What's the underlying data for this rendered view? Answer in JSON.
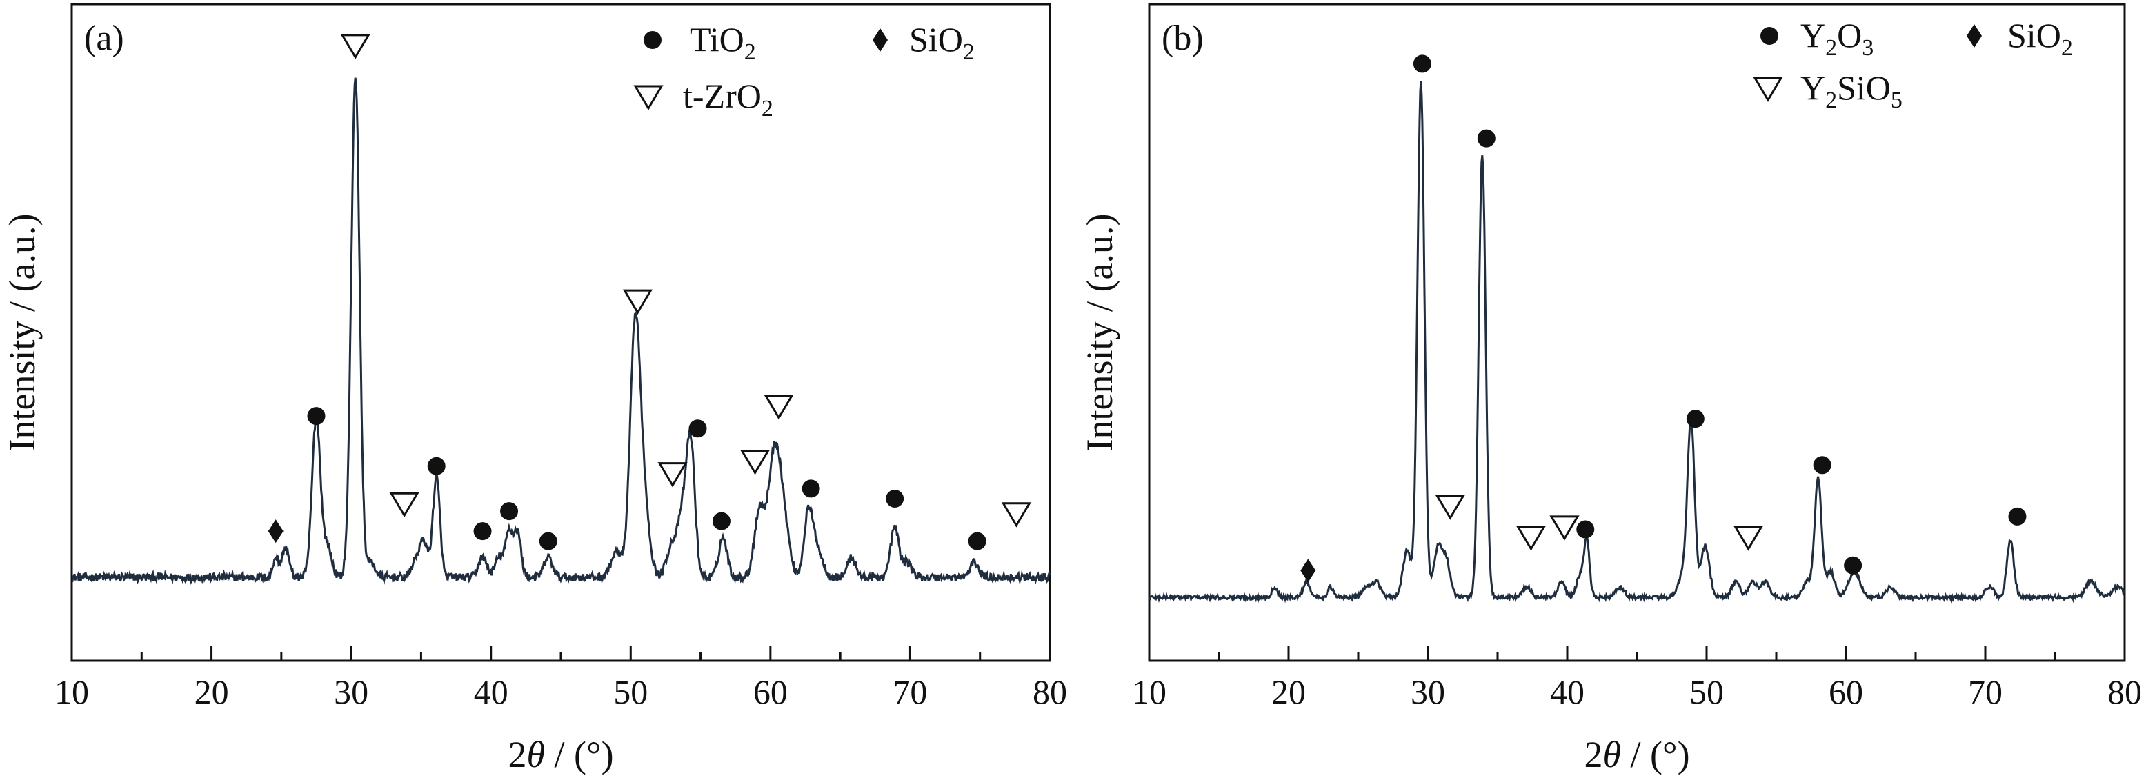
{
  "chart_data": [
    {
      "panel_label": "(a)",
      "type": "line",
      "xlabel_prefix": "2",
      "xlabel_theta": "θ",
      "xlabel_suffix": " / (°)",
      "ylabel": "Intensity / (a.u.)",
      "xlim": [
        10,
        80
      ],
      "xticks": [
        "10",
        "20",
        "30",
        "40",
        "50",
        "60",
        "70",
        "80"
      ],
      "ylim": [
        0,
        110
      ],
      "baseline": 1.8,
      "noise": 0.8,
      "line_color": "#1f2d3f",
      "peaks": [
        {
          "x": 24.6,
          "h": 4,
          "w": 0.2
        },
        {
          "x": 25.3,
          "h": 6,
          "w": 0.25
        },
        {
          "x": 27.5,
          "h": 32,
          "w": 0.3
        },
        {
          "x": 28.3,
          "h": 6,
          "w": 0.3
        },
        {
          "x": 30.3,
          "h": 100,
          "w": 0.3
        },
        {
          "x": 31.4,
          "h": 3,
          "w": 0.3
        },
        {
          "x": 34.6,
          "h": 3,
          "w": 0.3
        },
        {
          "x": 35.2,
          "h": 7,
          "w": 0.3
        },
        {
          "x": 36.1,
          "h": 20,
          "w": 0.25
        },
        {
          "x": 39.4,
          "h": 4,
          "w": 0.3
        },
        {
          "x": 40.6,
          "h": 4,
          "w": 0.3
        },
        {
          "x": 41.3,
          "h": 9,
          "w": 0.25
        },
        {
          "x": 41.9,
          "h": 9,
          "w": 0.25
        },
        {
          "x": 44.1,
          "h": 4,
          "w": 0.3
        },
        {
          "x": 49.0,
          "h": 5,
          "w": 0.4
        },
        {
          "x": 50.3,
          "h": 47,
          "w": 0.35
        },
        {
          "x": 50.9,
          "h": 16,
          "w": 0.4
        },
        {
          "x": 52.9,
          "h": 6,
          "w": 0.35
        },
        {
          "x": 53.7,
          "h": 12,
          "w": 0.35
        },
        {
          "x": 54.3,
          "h": 26,
          "w": 0.3
        },
        {
          "x": 56.6,
          "h": 8,
          "w": 0.3
        },
        {
          "x": 59.2,
          "h": 13,
          "w": 0.35
        },
        {
          "x": 60.3,
          "h": 25,
          "w": 0.45
        },
        {
          "x": 61.0,
          "h": 8,
          "w": 0.4
        },
        {
          "x": 62.7,
          "h": 12,
          "w": 0.3
        },
        {
          "x": 63.3,
          "h": 6,
          "w": 0.4
        },
        {
          "x": 65.8,
          "h": 4,
          "w": 0.3
        },
        {
          "x": 68.9,
          "h": 10,
          "w": 0.3
        },
        {
          "x": 69.8,
          "h": 3,
          "w": 0.3
        },
        {
          "x": 74.6,
          "h": 3,
          "w": 0.3
        }
      ],
      "markers": [
        {
          "x": 24.6,
          "y": 11,
          "shape": "diamond"
        },
        {
          "x": 27.5,
          "y": 34,
          "shape": "circle"
        },
        {
          "x": 30.3,
          "y": 108,
          "shape": "triangle"
        },
        {
          "x": 33.8,
          "y": 16.5,
          "shape": "triangle"
        },
        {
          "x": 36.1,
          "y": 24,
          "shape": "circle"
        },
        {
          "x": 39.4,
          "y": 11,
          "shape": "circle"
        },
        {
          "x": 41.3,
          "y": 15,
          "shape": "circle"
        },
        {
          "x": 44.1,
          "y": 9,
          "shape": "circle"
        },
        {
          "x": 50.5,
          "y": 57,
          "shape": "triangle"
        },
        {
          "x": 53.0,
          "y": 22.5,
          "shape": "triangle"
        },
        {
          "x": 54.8,
          "y": 31.5,
          "shape": "circle"
        },
        {
          "x": 56.5,
          "y": 13,
          "shape": "circle"
        },
        {
          "x": 58.9,
          "y": 25,
          "shape": "triangle"
        },
        {
          "x": 60.6,
          "y": 36,
          "shape": "triangle"
        },
        {
          "x": 62.9,
          "y": 19.5,
          "shape": "circle"
        },
        {
          "x": 68.9,
          "y": 17.5,
          "shape": "circle"
        },
        {
          "x": 74.8,
          "y": 9,
          "shape": "circle"
        },
        {
          "x": 77.6,
          "y": 14.5,
          "shape": "triangle"
        }
      ],
      "legend": [
        {
          "shape": "circle",
          "text": "TiO",
          "sub": "2",
          "tail": ""
        },
        {
          "shape": "diamond",
          "text": "SiO",
          "sub": "2",
          "tail": ""
        },
        {
          "shape": "triangle",
          "text": "t-ZrO",
          "sub": "2",
          "tail": ""
        }
      ]
    },
    {
      "panel_label": "(b)",
      "type": "line",
      "xlabel_prefix": "2",
      "xlabel_theta": "θ",
      "xlabel_suffix": " / (°)",
      "ylabel": "Intensity / (a.u.)",
      "xlim": [
        10,
        80
      ],
      "xticks": [
        "10",
        "20",
        "30",
        "40",
        "50",
        "60",
        "70",
        "80"
      ],
      "ylim": [
        0,
        110
      ],
      "baseline": 0.8,
      "noise": 0.4,
      "line_color": "#1f2d3f",
      "peaks": [
        {
          "x": 19.0,
          "h": 2,
          "w": 0.2
        },
        {
          "x": 21.3,
          "h": 3,
          "w": 0.25
        },
        {
          "x": 23.0,
          "h": 2,
          "w": 0.2
        },
        {
          "x": 25.6,
          "h": 2,
          "w": 0.3
        },
        {
          "x": 26.3,
          "h": 3,
          "w": 0.3
        },
        {
          "x": 28.5,
          "h": 9,
          "w": 0.3
        },
        {
          "x": 29.5,
          "h": 100,
          "w": 0.25
        },
        {
          "x": 30.7,
          "h": 9,
          "w": 0.3
        },
        {
          "x": 31.3,
          "h": 7,
          "w": 0.3
        },
        {
          "x": 33.9,
          "h": 86,
          "w": 0.25
        },
        {
          "x": 37.1,
          "h": 2,
          "w": 0.3
        },
        {
          "x": 39.6,
          "h": 3,
          "w": 0.25
        },
        {
          "x": 40.9,
          "h": 4,
          "w": 0.25
        },
        {
          "x": 41.4,
          "h": 11,
          "w": 0.2
        },
        {
          "x": 43.8,
          "h": 2,
          "w": 0.3
        },
        {
          "x": 48.5,
          "h": 6,
          "w": 0.4
        },
        {
          "x": 48.9,
          "h": 31,
          "w": 0.25
        },
        {
          "x": 49.9,
          "h": 10,
          "w": 0.3
        },
        {
          "x": 52.1,
          "h": 3,
          "w": 0.3
        },
        {
          "x": 53.3,
          "h": 3,
          "w": 0.3
        },
        {
          "x": 54.2,
          "h": 3,
          "w": 0.3
        },
        {
          "x": 57.2,
          "h": 3,
          "w": 0.3
        },
        {
          "x": 58.0,
          "h": 23,
          "w": 0.25
        },
        {
          "x": 58.9,
          "h": 5,
          "w": 0.3
        },
        {
          "x": 60.6,
          "h": 5,
          "w": 0.4
        },
        {
          "x": 63.2,
          "h": 2,
          "w": 0.3
        },
        {
          "x": 70.3,
          "h": 2,
          "w": 0.3
        },
        {
          "x": 71.8,
          "h": 11,
          "w": 0.25
        },
        {
          "x": 77.6,
          "h": 3,
          "w": 0.4
        },
        {
          "x": 79.5,
          "h": 2,
          "w": 0.4
        }
      ],
      "markers": [
        {
          "x": 21.4,
          "y": 6,
          "shape": "diamond"
        },
        {
          "x": 29.6,
          "y": 104.5,
          "shape": "circle"
        },
        {
          "x": 31.6,
          "y": 18.5,
          "shape": "triangle"
        },
        {
          "x": 34.2,
          "y": 90,
          "shape": "circle"
        },
        {
          "x": 37.4,
          "y": 12.5,
          "shape": "triangle"
        },
        {
          "x": 39.8,
          "y": 14.5,
          "shape": "triangle"
        },
        {
          "x": 41.3,
          "y": 14,
          "shape": "circle"
        },
        {
          "x": 49.2,
          "y": 35.5,
          "shape": "circle"
        },
        {
          "x": 53.0,
          "y": 12.5,
          "shape": "triangle"
        },
        {
          "x": 58.3,
          "y": 26.5,
          "shape": "circle"
        },
        {
          "x": 60.5,
          "y": 7,
          "shape": "circle"
        },
        {
          "x": 72.3,
          "y": 16.5,
          "shape": "circle"
        }
      ],
      "legend": [
        {
          "shape": "circle",
          "text": "Y",
          "sub": "2",
          "tail": "O",
          "sub2": "3"
        },
        {
          "shape": "diamond",
          "text": "SiO",
          "sub": "2",
          "tail": ""
        },
        {
          "shape": "triangle",
          "text": "Y",
          "sub": "2",
          "tail": "SiO",
          "sub2": "5"
        }
      ]
    }
  ]
}
